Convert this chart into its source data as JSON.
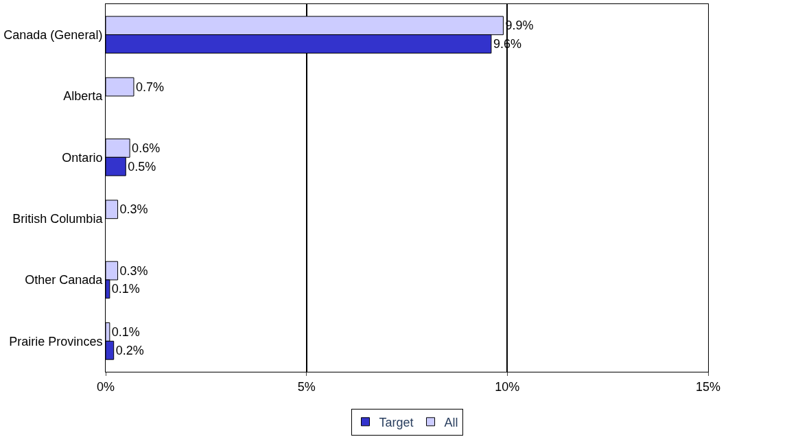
{
  "chart_data": {
    "type": "bar",
    "orientation": "horizontal",
    "categories": [
      "Canada (General)",
      "Alberta",
      "Ontario",
      "British Columbia",
      "Other Canada",
      "Prairie Provinces"
    ],
    "series": [
      {
        "name": "Target",
        "color": "#3333cc",
        "values": [
          9.6,
          null,
          0.5,
          null,
          0.1,
          0.2
        ],
        "value_labels": [
          "9.6%",
          null,
          "0.5%",
          null,
          "0.1%",
          "0.2%"
        ]
      },
      {
        "name": "All",
        "color": "#ccccff",
        "values": [
          9.9,
          0.7,
          0.6,
          0.3,
          0.3,
          0.1
        ],
        "value_labels": [
          "9.9%",
          "0.7%",
          "0.6%",
          "0.3%",
          "0.3%",
          "0.1%"
        ]
      }
    ],
    "xlim": [
      0,
      15
    ],
    "xticks": [
      {
        "value": 0,
        "label": "0%"
      },
      {
        "value": 5,
        "label": "5%"
      },
      {
        "value": 10,
        "label": "10%"
      },
      {
        "value": 15,
        "label": "15%"
      }
    ],
    "grid": "x",
    "legend": "bottom"
  }
}
